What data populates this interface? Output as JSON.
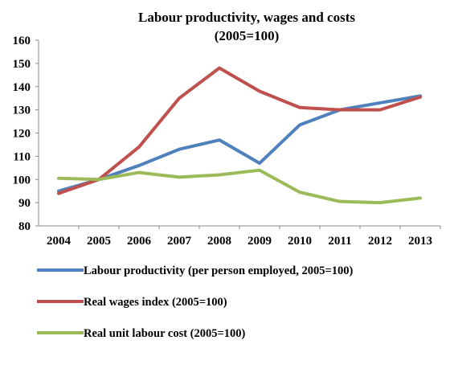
{
  "chart_data": {
    "type": "line",
    "title": "Labour productivity, wages and costs",
    "subtitle": "(2005=100)",
    "xlabel": "",
    "ylabel": "",
    "x": [
      "2004",
      "2005",
      "2006",
      "2007",
      "2008",
      "2009",
      "2010",
      "2011",
      "2012",
      "2013"
    ],
    "ylim": [
      80,
      160
    ],
    "yticks": [
      80,
      90,
      100,
      110,
      120,
      130,
      140,
      150,
      160
    ],
    "grid": false,
    "legend_position": "bottom",
    "series": [
      {
        "name": "Labour productivity (per person employed, 2005=100)",
        "color": "#4F81BD",
        "values": [
          95,
          100,
          106,
          113,
          117,
          107,
          123.5,
          130,
          133,
          136
        ]
      },
      {
        "name": "Real wages index (2005=100)",
        "color": "#C0504D",
        "values": [
          94,
          100,
          114,
          135,
          148,
          138,
          131,
          130,
          130,
          135.5
        ]
      },
      {
        "name": "Real unit labour cost (2005=100)",
        "color": "#9BBB59",
        "values": [
          100.5,
          100,
          103,
          101,
          102,
          104,
          94.5,
          90.5,
          90,
          92
        ]
      }
    ]
  }
}
